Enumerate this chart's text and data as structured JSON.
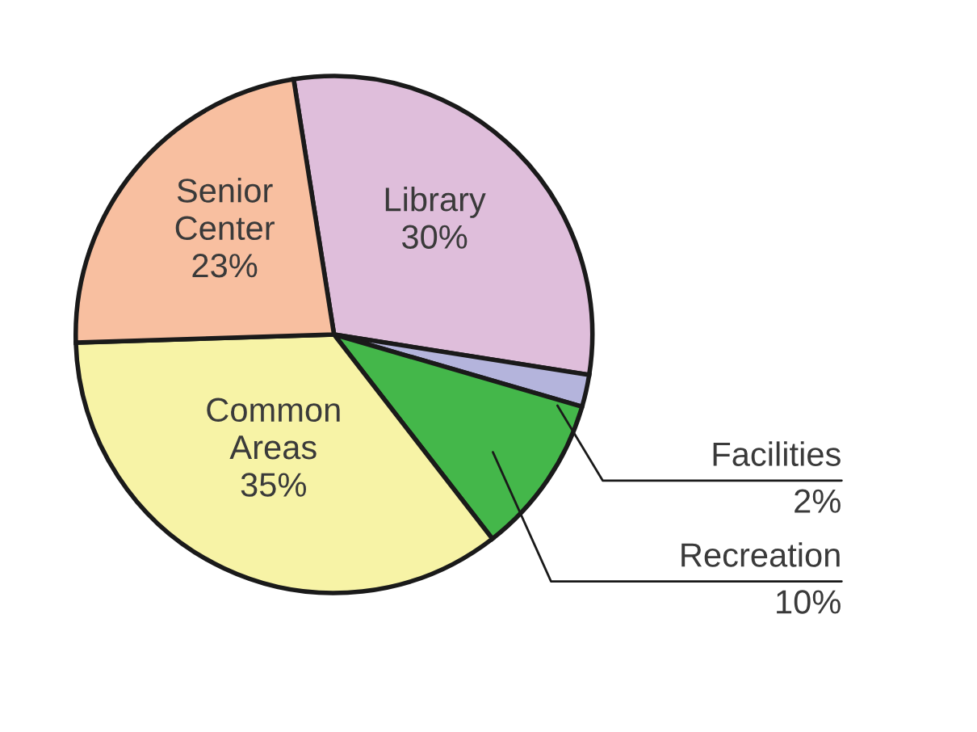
{
  "chart_data": {
    "type": "pie",
    "categories": [
      "Library",
      "Facilities",
      "Recreation",
      "Common Areas",
      "Senior Center"
    ],
    "values": [
      30,
      2,
      10,
      35,
      23
    ],
    "colors": [
      "#dfbedb",
      "#b4b4dc",
      "#44b74a",
      "#f7f3a6",
      "#f8bfa0"
    ],
    "value_labels": [
      "30%",
      "2%",
      "10%",
      "35%",
      "23%"
    ]
  }
}
